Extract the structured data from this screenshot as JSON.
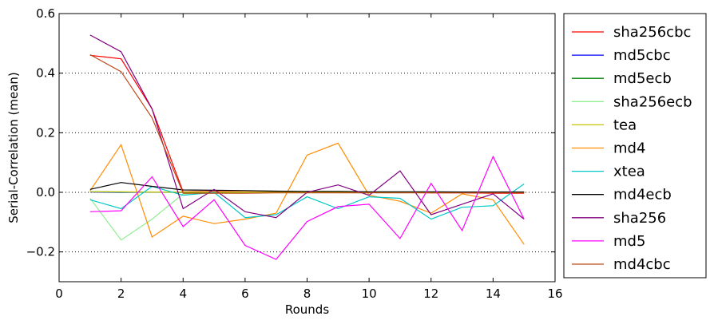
{
  "chart_data": {
    "type": "line",
    "xlabel": "Rounds",
    "ylabel": "Serial-Correlation (mean)",
    "xlim": [
      0,
      16
    ],
    "ylim": [
      -0.3,
      0.6
    ],
    "xticks": [
      0,
      2,
      4,
      6,
      8,
      10,
      12,
      14,
      16
    ],
    "yticks": [
      -0.2,
      0.0,
      0.2,
      0.4,
      0.6
    ],
    "xtick_labels": [
      "0",
      "2",
      "4",
      "6",
      "8",
      "10",
      "12",
      "14",
      "16"
    ],
    "ytick_labels": [
      "−0.2",
      "0.0",
      "0.2",
      "0.4",
      "0.6"
    ],
    "grid": "horizontal-dotted",
    "legend_position": "outside-right",
    "x": [
      1,
      2,
      3,
      4,
      5,
      6,
      7,
      8,
      9,
      10,
      11,
      12,
      13,
      14,
      15
    ],
    "series": [
      {
        "name": "sha256cbc",
        "color": "#ff0000",
        "values": [
          0.46,
          0.448,
          0.28,
          0.002,
          0.003,
          0.002,
          0.001,
          0.0,
          0.0,
          0.0,
          0.0,
          -0.002,
          -0.002,
          -0.003,
          -0.003
        ]
      },
      {
        "name": "md5cbc",
        "color": "#0000ff",
        "values": [
          0.001,
          0.0,
          0.001,
          0.0,
          0.0,
          0.0,
          0.0,
          0.0,
          0.0,
          0.0,
          0.0,
          0.0,
          0.0,
          0.0,
          0.0
        ]
      },
      {
        "name": "md5ecb",
        "color": "#008000",
        "values": [
          0.002,
          0.001,
          0.001,
          0.0,
          0.0,
          0.0,
          0.0,
          0.0,
          0.0,
          0.0,
          0.0,
          0.0,
          0.0,
          0.0,
          0.0
        ]
      },
      {
        "name": "sha256ecb",
        "color": "#90ee90",
        "values": [
          -0.02,
          -0.16,
          -0.09,
          -0.005,
          -0.003,
          -0.002,
          -0.001,
          0.0,
          0.0,
          0.0,
          0.0,
          0.0,
          0.0,
          0.0,
          0.0
        ]
      },
      {
        "name": "tea",
        "color": "#c8c800",
        "values": [
          0.002,
          0.002,
          0.001,
          0.001,
          0.001,
          0.001,
          0.0,
          0.0,
          0.0,
          0.0,
          0.0,
          0.0,
          0.0,
          0.0,
          0.0
        ]
      },
      {
        "name": "md4",
        "color": "#ff8c00",
        "values": [
          0.005,
          0.16,
          -0.15,
          -0.08,
          -0.105,
          -0.09,
          -0.07,
          0.125,
          0.165,
          -0.01,
          -0.03,
          -0.07,
          -0.005,
          -0.025,
          -0.175
        ]
      },
      {
        "name": "xtea",
        "color": "#00c8c8",
        "values": [
          -0.025,
          -0.055,
          0.02,
          -0.01,
          0.0,
          -0.085,
          -0.075,
          -0.015,
          -0.055,
          -0.015,
          -0.02,
          -0.09,
          -0.05,
          -0.045,
          0.028
        ]
      },
      {
        "name": "md4ecb",
        "color": "#000000",
        "values": [
          0.01,
          0.033,
          0.02,
          0.008,
          0.007,
          0.006,
          0.004,
          0.003,
          0.003,
          0.002,
          0.002,
          0.002,
          0.001,
          0.001,
          0.001
        ]
      },
      {
        "name": "sha256",
        "color": "#800080",
        "values": [
          0.528,
          0.472,
          0.28,
          -0.055,
          0.01,
          -0.065,
          -0.085,
          0.0,
          0.025,
          -0.01,
          0.072,
          -0.075,
          -0.04,
          -0.005,
          -0.09
        ]
      },
      {
        "name": "md5",
        "color": "#ff00ff",
        "values": [
          -0.065,
          -0.062,
          0.052,
          -0.115,
          -0.025,
          -0.178,
          -0.225,
          -0.098,
          -0.048,
          -0.04,
          -0.155,
          0.03,
          -0.128,
          0.12,
          -0.09
        ]
      },
      {
        "name": "md4cbc",
        "color": "#c04a1a",
        "values": [
          0.462,
          0.405,
          0.25,
          -0.003,
          -0.003,
          -0.003,
          -0.002,
          -0.002,
          -0.002,
          -0.002,
          -0.002,
          -0.002,
          -0.002,
          -0.002,
          -0.002
        ]
      }
    ]
  }
}
